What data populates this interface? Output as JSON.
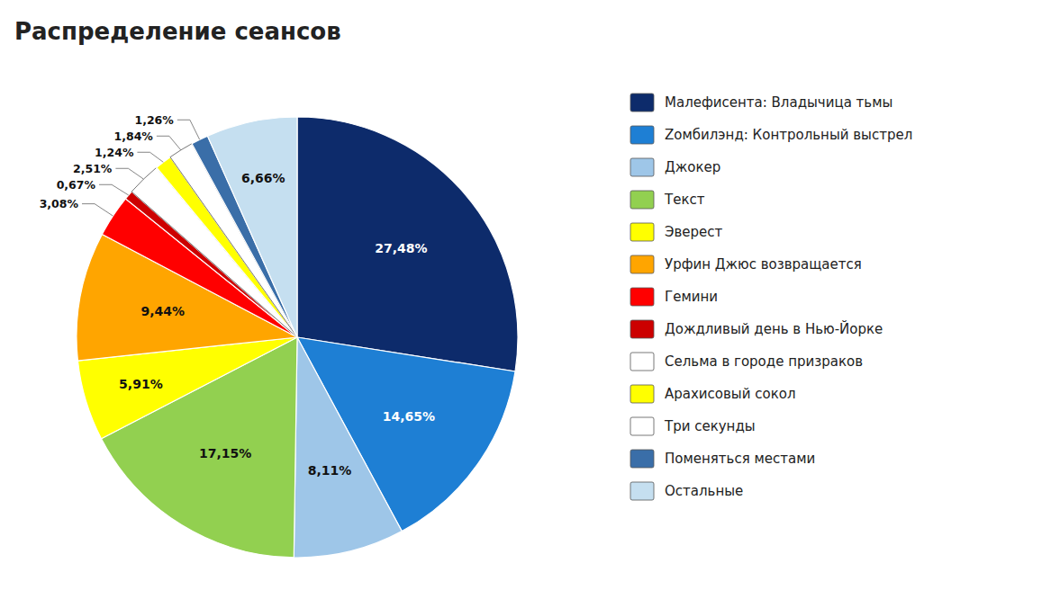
{
  "chart_data": {
    "type": "pie",
    "title": "Распределение сеансов",
    "categories": [
      "Малефисента: Владычица тьмы",
      "Zомбилэнд: Контрольный выстрел",
      "Джокер",
      "Текст",
      "Эверест",
      "Урфин Джюс возвращается",
      "Гемини",
      "Дождливый день в Нью-Йорке",
      "Сельма в городе призраков",
      "Арахисовый сокол",
      "Три секунды",
      "Поменяться местами",
      "Остальные"
    ],
    "values": [
      27.48,
      14.65,
      8.11,
      17.15,
      5.91,
      9.44,
      3.08,
      0.67,
      2.51,
      1.24,
      1.84,
      1.26,
      6.66
    ],
    "value_labels": [
      "27,48%",
      "14,65%",
      "8,11%",
      "17,15%",
      "5,91%",
      "9,44%",
      "3,08%",
      "0,67%",
      "2,51%",
      "1,24%",
      "1,84%",
      "1,26%",
      "6,66%"
    ],
    "colors": [
      "#0d2b6b",
      "#1e7fd4",
      "#9ec6e8",
      "#92d050",
      "#ffff00",
      "#ffa500",
      "#ff0000",
      "#cc0000",
      "#ffffff",
      "#ffff00",
      "#ffffff",
      "#3a6ea8",
      "#c5dff0"
    ],
    "data_labels": true,
    "legend": "right"
  }
}
